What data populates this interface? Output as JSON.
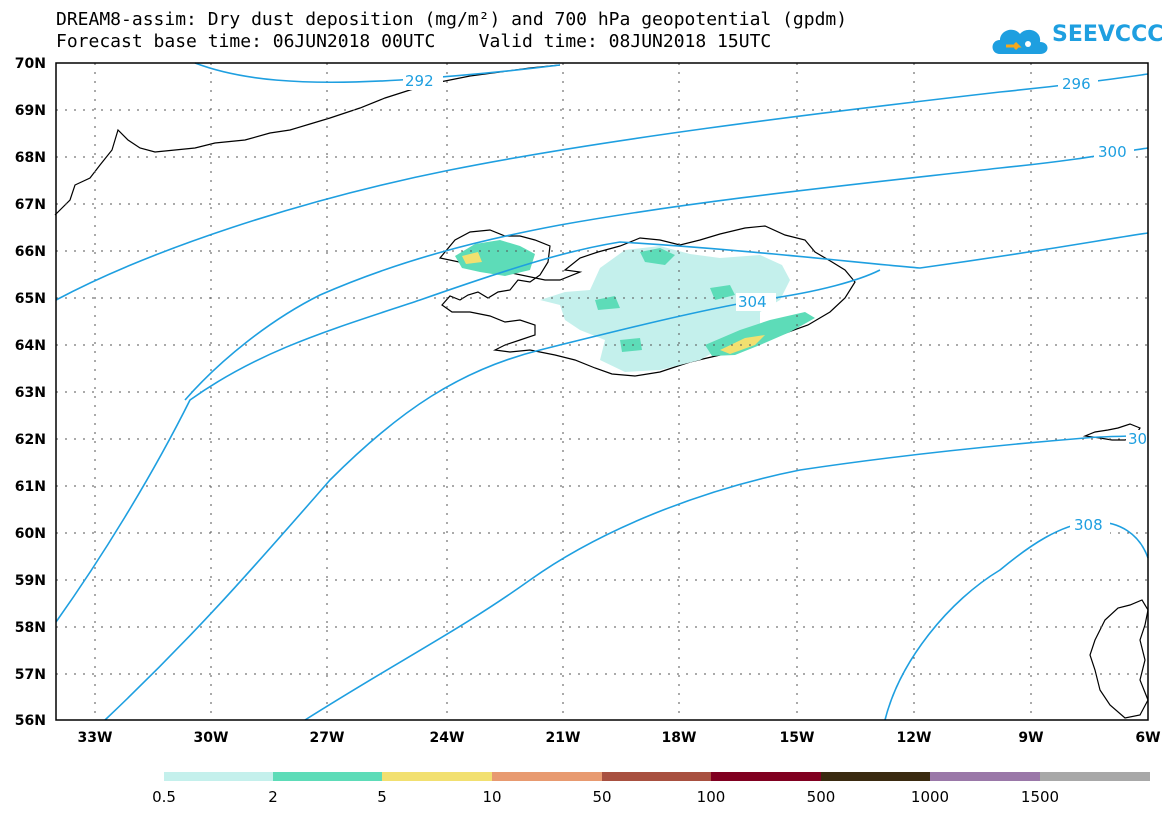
{
  "title": {
    "line1": "DREAM8-assim: Dry dust deposition (mg/m²) and 700 hPa geopotential (gpdm)",
    "line2": "Forecast base time: 06JUN2018 00UTC    Valid time: 08JUN2018 15UTC"
  },
  "logo": {
    "text": "SEEVCCC",
    "color": "#1e9fe0"
  },
  "map": {
    "lat_range": [
      56,
      70
    ],
    "lon_range": [
      -34.5,
      -6
    ],
    "lat_labels": [
      "70N",
      "69N",
      "68N",
      "67N",
      "66N",
      "65N",
      "64N",
      "63N",
      "62N",
      "61N",
      "60N",
      "59N",
      "58N",
      "57N",
      "56N"
    ],
    "lon_labels": [
      "33W",
      "30W",
      "27W",
      "24W",
      "21W",
      "18W",
      "15W",
      "12W",
      "9W",
      "6W"
    ],
    "grid": "dotted",
    "contour_color": "#1e9fe0",
    "contour_labels": [
      "292",
      "296",
      "300",
      "304",
      "30",
      "308"
    ]
  },
  "legend": {
    "colors": [
      "#c4f0ec",
      "#5ddcb8",
      "#f2e070",
      "#e89a70",
      "#a85040",
      "#800020",
      "#3a2a10",
      "#9a78a8",
      "#a8a8a8"
    ],
    "labels": [
      "0.5",
      "2",
      "5",
      "10",
      "50",
      "100",
      "500",
      "1000",
      "1500"
    ]
  }
}
